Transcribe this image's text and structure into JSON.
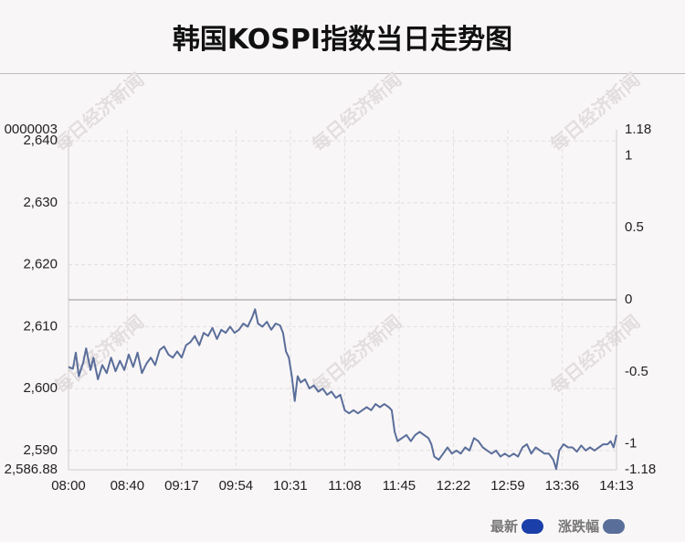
{
  "title": "韩国KOSPI指数当日走势图",
  "watermark": "每日经济新闻",
  "legend": [
    {
      "label": "最新",
      "color": "#1a3fa8"
    },
    {
      "label": "涨跌幅",
      "color": "#5a6e9a"
    }
  ],
  "chart_data": {
    "type": "line",
    "title": "韩国KOSPI指数当日走势图",
    "x_ticks": [
      "08:00",
      "08:40",
      "09:17",
      "09:54",
      "10:31",
      "11:08",
      "11:45",
      "12:22",
      "12:59",
      "13:36",
      "14:13"
    ],
    "x_range": [
      "08:00",
      "14:13"
    ],
    "left_axis": {
      "ylim": [
        2586.88,
        2641.8
      ],
      "top_label": "0000003",
      "bottom_label": "2,586.88",
      "ticks": [
        {
          "value": 2640,
          "label": "2,640"
        },
        {
          "value": 2630,
          "label": "2,630"
        },
        {
          "value": 2620,
          "label": "2,620"
        },
        {
          "value": 2610,
          "label": "2,610"
        },
        {
          "value": 2600,
          "label": "2,600"
        },
        {
          "value": 2590,
          "label": "2,590"
        }
      ]
    },
    "right_axis": {
      "ylim": [
        -1.18,
        1.18
      ],
      "ticks": [
        {
          "value": 1.18,
          "label": "1.18"
        },
        {
          "value": 1,
          "label": "1"
        },
        {
          "value": 0.5,
          "label": "0.5"
        },
        {
          "value": 0,
          "label": "0"
        },
        {
          "value": -0.5,
          "label": "-0.5"
        },
        {
          "value": -1,
          "label": "-1"
        },
        {
          "value": -1.18,
          "label": "-1.18"
        }
      ]
    },
    "zero_line_value": 0,
    "grid": true,
    "series": [
      {
        "name": "涨跌幅",
        "color": "#5a6e9a",
        "points": [
          [
            "08:00",
            2603.5
          ],
          [
            "08:03",
            2603.2
          ],
          [
            "08:05",
            2605.8
          ],
          [
            "08:07",
            2602.0
          ],
          [
            "08:10",
            2604.2
          ],
          [
            "08:12",
            2606.5
          ],
          [
            "08:15",
            2603.0
          ],
          [
            "08:17",
            2605.0
          ],
          [
            "08:20",
            2601.5
          ],
          [
            "08:23",
            2603.8
          ],
          [
            "08:26",
            2602.5
          ],
          [
            "08:29",
            2605.0
          ],
          [
            "08:32",
            2602.8
          ],
          [
            "08:35",
            2604.5
          ],
          [
            "08:38",
            2603.0
          ],
          [
            "08:41",
            2605.5
          ],
          [
            "08:44",
            2603.5
          ],
          [
            "08:47",
            2605.8
          ],
          [
            "08:50",
            2602.5
          ],
          [
            "08:53",
            2604.0
          ],
          [
            "08:56",
            2605.0
          ],
          [
            "08:59",
            2603.8
          ],
          [
            "09:02",
            2606.2
          ],
          [
            "09:05",
            2606.8
          ],
          [
            "09:08",
            2605.5
          ],
          [
            "09:11",
            2605.0
          ],
          [
            "09:14",
            2606.0
          ],
          [
            "09:17",
            2605.0
          ],
          [
            "09:20",
            2607.0
          ],
          [
            "09:23",
            2607.5
          ],
          [
            "09:26",
            2608.5
          ],
          [
            "09:29",
            2607.0
          ],
          [
            "09:32",
            2609.0
          ],
          [
            "09:35",
            2608.5
          ],
          [
            "09:38",
            2609.8
          ],
          [
            "09:41",
            2608.0
          ],
          [
            "09:44",
            2609.5
          ],
          [
            "09:47",
            2609.0
          ],
          [
            "09:50",
            2610.0
          ],
          [
            "09:53",
            2609.0
          ],
          [
            "09:56",
            2609.5
          ],
          [
            "09:59",
            2610.5
          ],
          [
            "10:02",
            2610.0
          ],
          [
            "10:05",
            2611.5
          ],
          [
            "10:07",
            2612.8
          ],
          [
            "10:09",
            2610.5
          ],
          [
            "10:12",
            2610.0
          ],
          [
            "10:15",
            2610.8
          ],
          [
            "10:18",
            2609.5
          ],
          [
            "10:21",
            2610.5
          ],
          [
            "10:24",
            2610.2
          ],
          [
            "10:26",
            2609.0
          ],
          [
            "10:28",
            2606.0
          ],
          [
            "10:30",
            2605.0
          ],
          [
            "10:32",
            2602.0
          ],
          [
            "10:34",
            2598.0
          ],
          [
            "10:36",
            2602.0
          ],
          [
            "10:38",
            2601.0
          ],
          [
            "10:41",
            2601.5
          ],
          [
            "10:44",
            2600.0
          ],
          [
            "10:47",
            2600.5
          ],
          [
            "10:50",
            2599.5
          ],
          [
            "10:53",
            2600.0
          ],
          [
            "10:56",
            2599.0
          ],
          [
            "10:59",
            2599.5
          ],
          [
            "11:02",
            2598.5
          ],
          [
            "11:05",
            2599.0
          ],
          [
            "11:08",
            2596.5
          ],
          [
            "11:11",
            2596.0
          ],
          [
            "11:14",
            2596.5
          ],
          [
            "11:17",
            2596.0
          ],
          [
            "11:20",
            2596.5
          ],
          [
            "11:23",
            2597.0
          ],
          [
            "11:26",
            2596.5
          ],
          [
            "11:29",
            2597.5
          ],
          [
            "11:32",
            2597.0
          ],
          [
            "11:35",
            2597.5
          ],
          [
            "11:38",
            2597.0
          ],
          [
            "11:40",
            2596.5
          ],
          [
            "11:42",
            2593.0
          ],
          [
            "11:44",
            2591.5
          ],
          [
            "11:47",
            2592.0
          ],
          [
            "11:50",
            2592.5
          ],
          [
            "11:53",
            2591.5
          ],
          [
            "11:56",
            2592.5
          ],
          [
            "11:59",
            2593.0
          ],
          [
            "12:02",
            2592.5
          ],
          [
            "12:05",
            2592.0
          ],
          [
            "12:07",
            2591.0
          ],
          [
            "12:09",
            2589.0
          ],
          [
            "12:12",
            2588.5
          ],
          [
            "12:15",
            2589.5
          ],
          [
            "12:18",
            2590.5
          ],
          [
            "12:21",
            2589.5
          ],
          [
            "12:24",
            2590.0
          ],
          [
            "12:27",
            2589.5
          ],
          [
            "12:30",
            2590.5
          ],
          [
            "12:33",
            2590.0
          ],
          [
            "12:36",
            2592.0
          ],
          [
            "12:39",
            2591.5
          ],
          [
            "12:42",
            2590.5
          ],
          [
            "12:45",
            2590.0
          ],
          [
            "12:48",
            2589.5
          ],
          [
            "12:51",
            2590.0
          ],
          [
            "12:54",
            2589.0
          ],
          [
            "12:57",
            2589.5
          ],
          [
            "13:00",
            2589.0
          ],
          [
            "13:03",
            2589.5
          ],
          [
            "13:06",
            2589.0
          ],
          [
            "13:09",
            2590.5
          ],
          [
            "13:12",
            2591.0
          ],
          [
            "13:15",
            2589.5
          ],
          [
            "13:18",
            2590.5
          ],
          [
            "13:21",
            2590.0
          ],
          [
            "13:24",
            2589.5
          ],
          [
            "13:27",
            2589.5
          ],
          [
            "13:30",
            2588.5
          ],
          [
            "13:32",
            2587.0
          ],
          [
            "13:34",
            2590.0
          ],
          [
            "13:37",
            2591.0
          ],
          [
            "13:40",
            2590.5
          ],
          [
            "13:43",
            2590.5
          ],
          [
            "13:46",
            2589.8
          ],
          [
            "13:49",
            2590.8
          ],
          [
            "13:52",
            2590.0
          ],
          [
            "13:55",
            2590.5
          ],
          [
            "13:58",
            2590.0
          ],
          [
            "14:01",
            2590.5
          ],
          [
            "14:04",
            2591.0
          ],
          [
            "14:07",
            2591.0
          ],
          [
            "14:09",
            2591.5
          ],
          [
            "14:11",
            2590.5
          ],
          [
            "14:13",
            2592.5
          ]
        ]
      }
    ]
  }
}
